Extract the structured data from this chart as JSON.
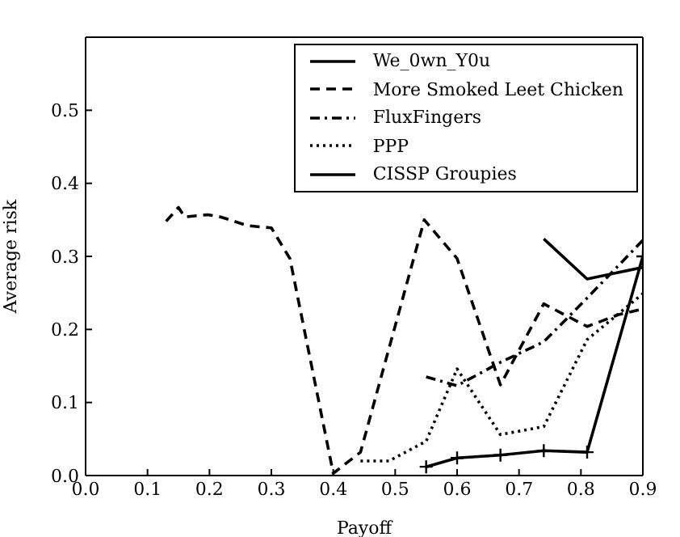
{
  "chart_data": {
    "type": "line",
    "xlabel": "Payoff",
    "ylabel": "Average risk",
    "xlim": [
      0,
      0.9
    ],
    "xticks": [
      {
        "value": 0,
        "label": "0.0"
      },
      0.1,
      0.2,
      0.3,
      0.4,
      0.5,
      0.6,
      0.7,
      0.8,
      0.9
    ],
    "ylim": [
      0,
      0.6
    ],
    "yticks": [
      {
        "value": 0,
        "label": "0.0"
      },
      0.1,
      0.2,
      0.3,
      0.4,
      0.5
    ],
    "grid": false,
    "legend": "top right",
    "marker": "none",
    "series": [
      {
        "name": "We_0wn_Y0u",
        "color": "#000000",
        "line_style": "solid",
        "x": [
          0.74,
          0.81,
          0.9
        ],
        "values": [
          0.324,
          0.269,
          0.285
        ]
      },
      {
        "name": "More Smoked Leet Chicken",
        "color": "#000000",
        "line_style": "dashed",
        "x": [
          0.13,
          0.15,
          0.16,
          0.197,
          0.218,
          0.262,
          0.3,
          0.33,
          0.4,
          0.444,
          0.547,
          0.6,
          0.67,
          0.74,
          0.81,
          0.86,
          0.9
        ],
        "values": [
          0.348,
          0.367,
          0.354,
          0.357,
          0.354,
          0.342,
          0.339,
          0.297,
          0.003,
          0.032,
          0.35,
          0.297,
          0.124,
          0.235,
          0.204,
          0.22,
          0.228
        ]
      },
      {
        "name": "FluxFingers",
        "color": "#000000",
        "line_style": "dashdot",
        "x": [
          0.55,
          0.6,
          0.67,
          0.74,
          0.81,
          0.9
        ],
        "values": [
          0.135,
          0.123,
          0.155,
          0.183,
          0.243,
          0.322
        ]
      },
      {
        "name": "PPP",
        "color": "#000000",
        "line_style": "dotted",
        "x": [
          0.444,
          0.49,
          0.55,
          0.6,
          0.67,
          0.74,
          0.81,
          0.9
        ],
        "values": [
          0.02,
          0.02,
          0.047,
          0.146,
          0.056,
          0.067,
          0.186,
          0.249
        ]
      },
      {
        "name": "CISSP Groupies",
        "color": "#000000",
        "line_style": "solid",
        "marker": "cross",
        "x": [
          0.55,
          0.6,
          0.67,
          0.74,
          0.81,
          0.9
        ],
        "values": [
          0.012,
          0.024,
          0.028,
          0.034,
          0.032,
          0.3
        ]
      }
    ]
  }
}
